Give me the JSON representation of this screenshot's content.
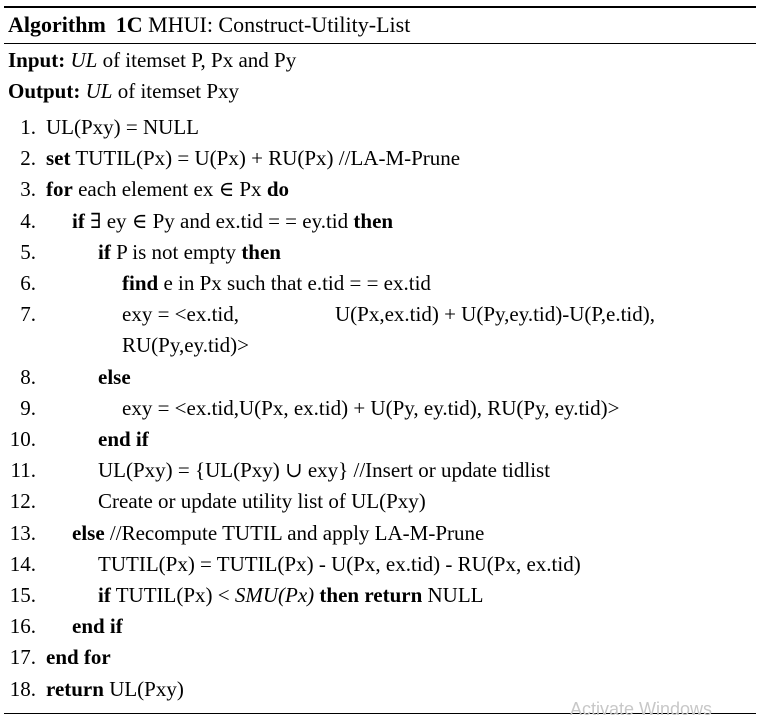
{
  "title": {
    "label": "Algorithm",
    "number": "1C",
    "name": "MHUI: Construct-Utility-List"
  },
  "input": {
    "label": "Input:",
    "math": "UL",
    "text": " of itemset P, Px and Py"
  },
  "output": {
    "label": "Output:",
    "math": "UL",
    "text": " of itemset Pxy"
  },
  "lines": [
    {
      "num": "1.",
      "indent": 0,
      "parts": [
        {
          "t": "UL(Pxy) = NULL"
        }
      ]
    },
    {
      "num": "2.",
      "indent": 0,
      "parts": [
        {
          "t": "set",
          "s": "kw"
        },
        {
          "t": " TUTIL(Px) = U(Px) + RU(Px) //LA-M-Prune"
        }
      ]
    },
    {
      "num": "3.",
      "indent": 0,
      "parts": [
        {
          "t": "for",
          "s": "kw"
        },
        {
          "t": " each element ex ∈ Px "
        },
        {
          "t": "do",
          "s": "kw"
        }
      ]
    },
    {
      "num": "4.",
      "indent": 1,
      "parts": [
        {
          "t": "if",
          "s": "kw"
        },
        {
          "t": " ∃ ey ∈ Py and ex.tid = = ey.tid "
        },
        {
          "t": "then",
          "s": "kw"
        }
      ]
    },
    {
      "num": "5.",
      "indent": 2,
      "parts": [
        {
          "t": "if",
          "s": "kw"
        },
        {
          "t": " P is not empty "
        },
        {
          "t": "then",
          "s": "kw"
        }
      ]
    },
    {
      "num": "6.",
      "indent": 3,
      "parts": [
        {
          "t": "find",
          "s": "kw"
        },
        {
          "t": " e in Px such that e.tid = = ex.tid"
        }
      ]
    },
    {
      "num": "7.",
      "indent": 3,
      "parts": [
        {
          "t": "exy = <ex.tid,"
        },
        {
          "t": "U(Px,ex.tid) + U(Py,ey.tid)-U(P,e.tid),",
          "s": "gap"
        }
      ]
    },
    {
      "num": "",
      "indent": 3,
      "parts": [
        {
          "t": "RU(Py,ey.tid)>"
        }
      ]
    },
    {
      "num": "8.",
      "indent": 2,
      "parts": [
        {
          "t": "else",
          "s": "kw"
        }
      ]
    },
    {
      "num": "9.",
      "indent": 3,
      "parts": [
        {
          "t": "exy = <ex.tid,U(Px, ex.tid) + U(Py, ey.tid), RU(Py, ey.tid)>"
        }
      ]
    },
    {
      "num": "10.",
      "indent": 2,
      "parts": [
        {
          "t": "end if",
          "s": "kw"
        }
      ]
    },
    {
      "num": "11.",
      "indent": 2,
      "parts": [
        {
          "t": "UL(Pxy) = {UL(Pxy) ∪ exy} //Insert or update tidlist"
        }
      ]
    },
    {
      "num": "12.",
      "indent": 2,
      "parts": [
        {
          "t": "Create or update utility list of UL(Pxy)"
        }
      ]
    },
    {
      "num": "13.",
      "indent": 1,
      "parts": [
        {
          "t": "else",
          "s": "kw"
        },
        {
          "t": " //Recompute TUTIL and apply LA-M-Prune"
        }
      ]
    },
    {
      "num": "14.",
      "indent": 2,
      "parts": [
        {
          "t": "TUTIL(Px) = TUTIL(Px) - U(Px, ex.tid) - RU(Px, ex.tid)"
        }
      ]
    },
    {
      "num": "15.",
      "indent": 2,
      "parts": [
        {
          "t": "if",
          "s": "kw"
        },
        {
          "t": " TUTIL(Px) < "
        },
        {
          "t": "SMU(Px)",
          "s": "it"
        },
        {
          "t": "  "
        },
        {
          "t": "then return",
          "s": "kw"
        },
        {
          "t": " NULL"
        }
      ]
    },
    {
      "num": "16.",
      "indent": 1,
      "parts": [
        {
          "t": "end if",
          "s": "kw"
        }
      ]
    },
    {
      "num": "17.",
      "indent": 0,
      "parts": [
        {
          "t": "end for",
          "s": "kw"
        }
      ]
    },
    {
      "num": "18.",
      "indent": 0,
      "parts": [
        {
          "t": "return",
          "s": "kw"
        },
        {
          "t": "  UL(Pxy)"
        }
      ]
    }
  ],
  "watermark": "Activate Windows"
}
